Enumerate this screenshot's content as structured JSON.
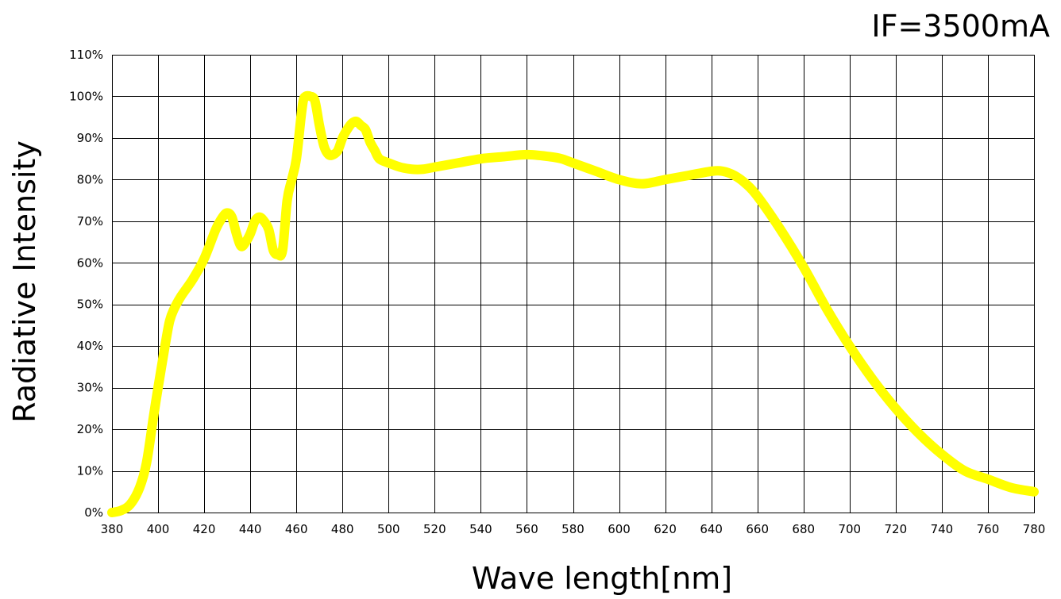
{
  "chart_data": {
    "type": "line",
    "title": "",
    "xlabel": "Wave length[nm]",
    "ylabel": "Radiative Intensity",
    "annotation": "IF=3500mA",
    "xlim": [
      380,
      780
    ],
    "ylim": [
      0,
      110
    ],
    "x_ticks": [
      380,
      400,
      420,
      440,
      460,
      480,
      500,
      520,
      540,
      560,
      580,
      600,
      620,
      640,
      660,
      680,
      700,
      720,
      740,
      760,
      780
    ],
    "y_ticks": [
      0,
      10,
      20,
      30,
      40,
      50,
      60,
      70,
      80,
      90,
      100,
      110
    ],
    "y_tick_labels": [
      "0%",
      "10%",
      "20%",
      "30%",
      "40%",
      "50%",
      "60%",
      "70%",
      "80%",
      "90%",
      "100%",
      "110%"
    ],
    "grid": true,
    "legend": "none",
    "series": [
      {
        "color": "#ffff00",
        "x": [
          380,
          384,
          388,
          392,
          395,
          398,
          400,
          403,
          405,
          407,
          410,
          415,
          420,
          425,
          428,
          430,
          432,
          434,
          436,
          438,
          440,
          442,
          444,
          446,
          448,
          450,
          452,
          454,
          456,
          458,
          460,
          462,
          463,
          464,
          466,
          468,
          470,
          472,
          474,
          476,
          478,
          480,
          482,
          484,
          486,
          488,
          490,
          492,
          494,
          496,
          500,
          505,
          510,
          515,
          520,
          530,
          540,
          550,
          560,
          570,
          575,
          580,
          590,
          600,
          610,
          620,
          630,
          640,
          645,
          650,
          655,
          660,
          670,
          680,
          690,
          700,
          710,
          720,
          730,
          740,
          750,
          760,
          770,
          780
        ],
        "y": [
          0,
          0.5,
          2,
          6,
          12,
          23,
          30,
          40,
          46,
          49,
          52,
          56,
          61,
          68,
          71,
          72,
          71,
          67,
          64,
          65,
          67,
          70,
          71,
          70,
          68,
          63,
          62,
          63,
          75,
          80,
          85,
          95,
          99,
          100,
          100,
          99,
          93,
          88,
          86,
          86,
          87,
          90,
          92,
          93.5,
          94,
          93,
          92,
          89,
          87,
          85,
          84,
          83,
          82.5,
          82.5,
          83,
          84,
          85,
          85.5,
          86,
          85.5,
          85,
          84,
          82,
          80,
          79,
          80,
          81,
          82,
          82,
          81,
          79,
          76,
          68,
          59,
          49,
          40,
          32,
          25,
          19,
          14,
          10,
          8,
          6,
          5
        ]
      }
    ]
  }
}
